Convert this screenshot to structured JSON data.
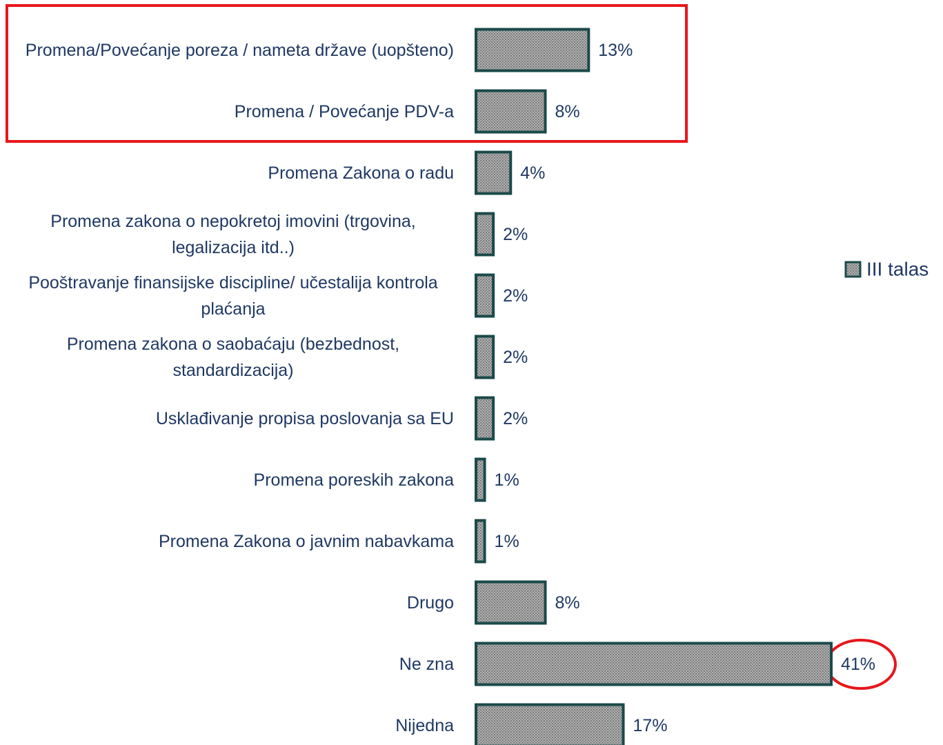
{
  "chart_data": {
    "type": "bar",
    "orientation": "horizontal",
    "categories": [
      "Promena/Povećanje poreza / nameta države (uopšteno)",
      "Promena / Povećanje PDV-a",
      "Promena Zakona o radu",
      "Promena zakona o nepokretoj imovini (trgovina, legalizacija itd..)",
      "Pooštravanje finansijske discipline/ učestalija kontrola plaćanja",
      "Promena zakona o saobaćaju (bezbednost, standardizacija)",
      "Usklađivanje propisa poslovanja sa EU",
      "Promena poreskih zakona",
      "Promena Zakona o javnim nabavkama",
      "Drugo",
      "Ne zna",
      "Nijedna"
    ],
    "series": [
      {
        "name": "III talas",
        "color": "#9a9a9a",
        "values": [
          13,
          8,
          4,
          2,
          2,
          2,
          2,
          1,
          1,
          8,
          41,
          17
        ],
        "value_labels": [
          "13%",
          "8%",
          "4%",
          "2%",
          "2%",
          "2%",
          "2%",
          "1%",
          "1%",
          "8%",
          "41%",
          "17%"
        ]
      }
    ],
    "legend": "right"
  }
}
